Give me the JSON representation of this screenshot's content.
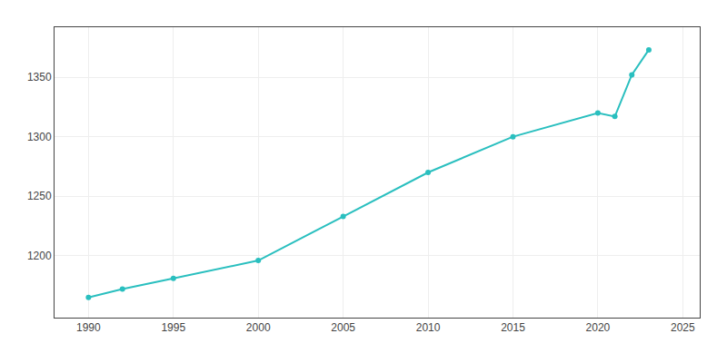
{
  "chart_data": {
    "type": "line",
    "x": [
      1990,
      1992,
      1995,
      2000,
      2005,
      2010,
      2015,
      2020,
      2021,
      2022,
      2023
    ],
    "values": [
      1165,
      1172,
      1181,
      1196,
      1233,
      1270,
      1300,
      1320,
      1317,
      1352,
      1373
    ],
    "color": "#2abfbf",
    "marker": "circle",
    "line_style": "solid",
    "xlim": [
      1988,
      2026
    ],
    "xticks": [
      1990,
      1995,
      2000,
      2005,
      2010,
      2015,
      2020,
      2025
    ],
    "ylim": [
      1148,
      1392
    ],
    "yticks": [
      1200,
      1250,
      1300,
      1350
    ],
    "grid": true
  }
}
